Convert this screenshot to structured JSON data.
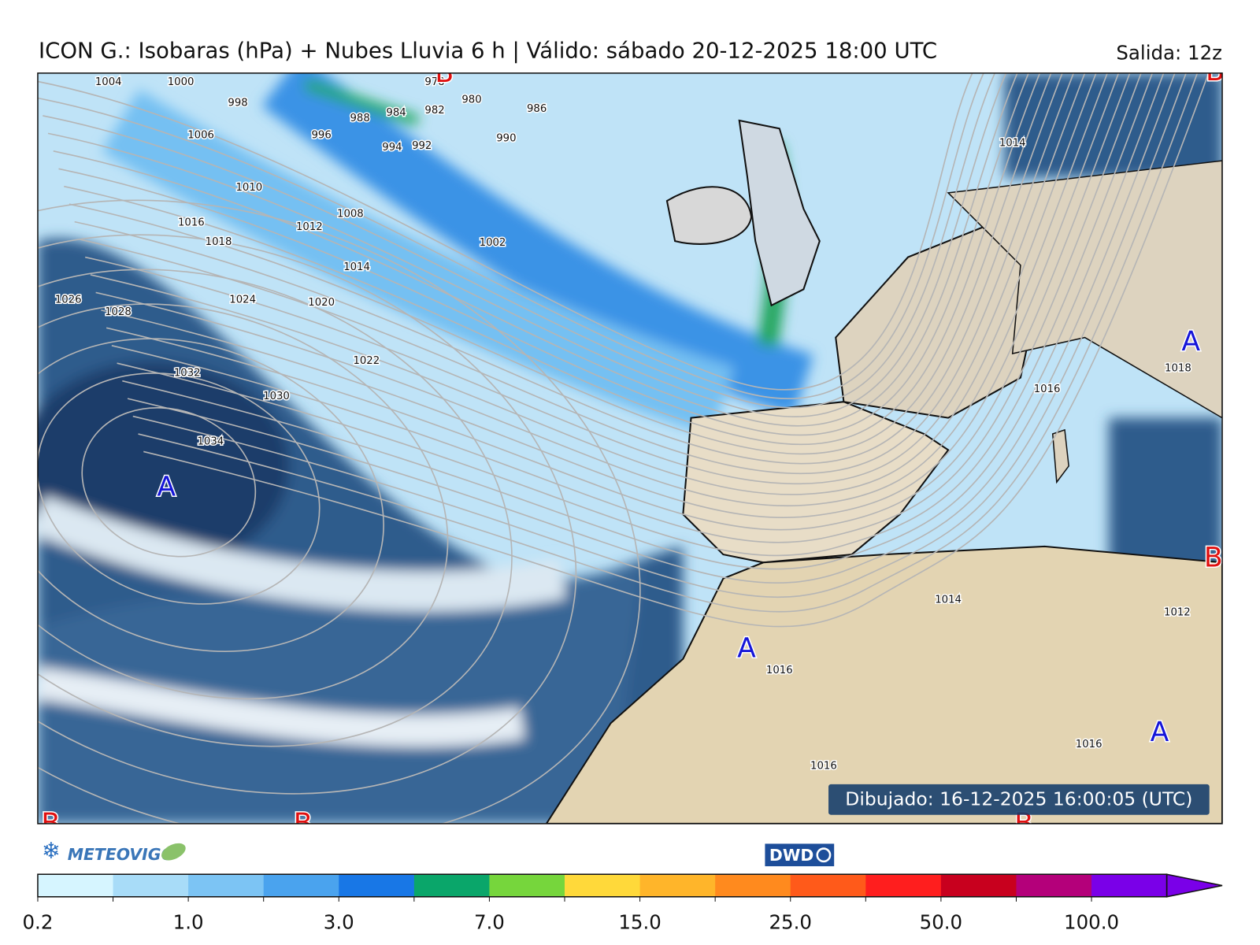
{
  "header": {
    "title": "ICON G.: Isobaras (hPa) + Nubes  Lluvia 6 h | Válido: sábado 20-12-2025 18:00 UTC",
    "run": "Salida: 12z"
  },
  "map": {
    "drawn": "Dibujado: 16-12-2025 16:00:05 (UTC)",
    "isobar_labels": [
      "1004",
      "1000",
      "998",
      "996",
      "994",
      "992",
      "990",
      "988",
      "984",
      "982",
      "980",
      "986",
      "978",
      "1006",
      "1010",
      "1008",
      "1002",
      "1012",
      "1016",
      "1018",
      "1014",
      "1026",
      "1028",
      "1024",
      "1020",
      "1022",
      "1032",
      "1030",
      "1034",
      "1014",
      "1018",
      "1016",
      "1014",
      "1012",
      "1016",
      "1016",
      "1016"
    ],
    "pressure_centers": [
      "B",
      "B",
      "A",
      "A",
      "B",
      "A",
      "B",
      "B",
      "B",
      "A"
    ]
  },
  "logos": {
    "meteovigo": "METEOVIGO",
    "dwd": "DWD"
  },
  "colorbar": {
    "colors": [
      "#d6f5ff",
      "#a8dcf8",
      "#7cc4f4",
      "#4aa3ee",
      "#1877e6",
      "#0aa66a",
      "#76d63c",
      "#ffd93a",
      "#ffb52a",
      "#ff8a1e",
      "#ff5a1a",
      "#ff1e1e",
      "#c8001e",
      "#b4007a",
      "#7a00e8"
    ],
    "ticks": [
      "0.2",
      "1.0",
      "3.0",
      "7.0",
      "15.0",
      "25.0",
      "50.0",
      "100.0"
    ]
  }
}
